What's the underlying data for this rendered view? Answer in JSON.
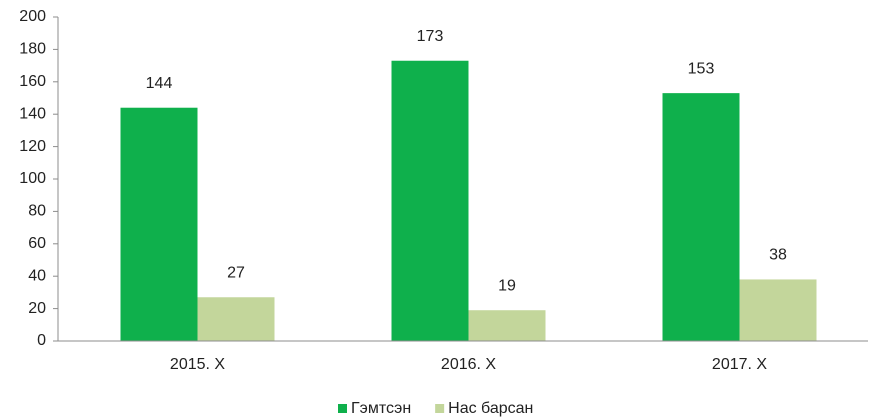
{
  "chart_data": {
    "type": "bar",
    "categories": [
      "2015. X",
      "2016. X",
      "2017. X"
    ],
    "series": [
      {
        "name": "Гэмтсэн",
        "color": "#0fb04c",
        "values": [
          144,
          173,
          153
        ]
      },
      {
        "name": "Нас барсан",
        "color": "#c3d69b",
        "values": [
          27,
          19,
          38
        ]
      }
    ],
    "ylim": [
      0,
      200
    ],
    "yticks": [
      0,
      20,
      40,
      60,
      80,
      100,
      120,
      140,
      160,
      180,
      200
    ],
    "grid": false,
    "legend": "bottom",
    "data_labels": true
  }
}
